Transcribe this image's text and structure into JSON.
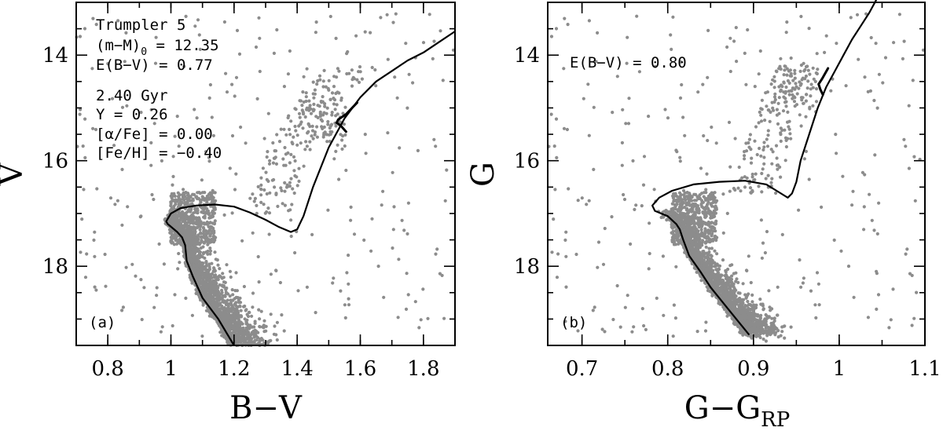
{
  "chart_data": [
    {
      "type": "scatter",
      "panel_label": "(a)",
      "xlabel": "B−V",
      "ylabel": "V",
      "xlim": [
        0.7,
        1.9
      ],
      "ylim": [
        19.5,
        13.0
      ],
      "y_inverted": true,
      "xticks": [
        "0.8",
        "1",
        "1.2",
        "1.4",
        "1.6",
        "1.8"
      ],
      "yticks": [
        "14",
        "16",
        "18"
      ],
      "xtick_values": [
        0.8,
        1.0,
        1.2,
        1.4,
        1.6,
        1.8
      ],
      "ytick_values": [
        14,
        16,
        18
      ],
      "annotations": [
        "Trumpler 5",
        "(m−M)",
        "0",
        " = 12.35",
        "E(B−V) = 0.77",
        "2.40 Gyr",
        "Y = 0.26",
        "[α/Fe] = 0.00",
        "[Fe/H] = −0.40"
      ],
      "star_color": "#8c8c8c",
      "isochrone": {
        "x": [
          1.2,
          1.15,
          1.1,
          1.07,
          1.05,
          1.045,
          1.035,
          1.02,
          0.99,
          0.985,
          1.0,
          1.03,
          1.08,
          1.14,
          1.2,
          1.25,
          1.3,
          1.34,
          1.38,
          1.4,
          1.42,
          1.45,
          1.5,
          1.55,
          1.6,
          1.65,
          1.7,
          1.75,
          1.8,
          1.85,
          1.9
        ],
        "y": [
          19.5,
          19.0,
          18.6,
          18.2,
          17.9,
          17.6,
          17.45,
          17.35,
          17.2,
          17.15,
          17.0,
          16.9,
          16.85,
          16.83,
          16.87,
          16.98,
          17.12,
          17.25,
          17.35,
          17.3,
          17.05,
          16.5,
          15.75,
          15.2,
          14.8,
          14.5,
          14.3,
          14.1,
          13.95,
          13.75,
          13.55
        ]
      },
      "red_clump_track": {
        "x": [
          1.59,
          1.555,
          1.53,
          1.525,
          1.54,
          1.555
        ],
        "y": [
          14.9,
          15.12,
          15.22,
          15.28,
          15.35,
          15.45
        ]
      }
    },
    {
      "type": "scatter",
      "panel_label": "(b)",
      "xlabel": "G−G",
      "xlabel_sub": "RP",
      "ylabel": "G",
      "xlim": [
        0.66,
        1.1
      ],
      "ylim": [
        19.5,
        13.0
      ],
      "y_inverted": true,
      "xticks": [
        "0.7",
        "0.8",
        "0.9",
        "1",
        "1.1"
      ],
      "yticks": [
        "14",
        "16",
        "18"
      ],
      "xtick_values": [
        0.7,
        0.8,
        0.9,
        1.0,
        1.1
      ],
      "ytick_values": [
        14,
        16,
        18
      ],
      "annotations": [
        "E(B−V) = 0.80"
      ],
      "star_color": "#8c8c8c",
      "isochrone": {
        "x": [
          0.895,
          0.88,
          0.865,
          0.85,
          0.838,
          0.825,
          0.818,
          0.814,
          0.81,
          0.8,
          0.785,
          0.782,
          0.79,
          0.805,
          0.83,
          0.86,
          0.89,
          0.915,
          0.93,
          0.94,
          0.945,
          0.95,
          0.955,
          0.965,
          0.975,
          0.985,
          0.995,
          1.005,
          1.015,
          1.025,
          1.035,
          1.045
        ],
        "y": [
          19.3,
          19.0,
          18.7,
          18.4,
          18.1,
          17.8,
          17.5,
          17.3,
          17.2,
          17.05,
          16.95,
          16.85,
          16.7,
          16.57,
          16.45,
          16.4,
          16.38,
          16.45,
          16.6,
          16.7,
          16.62,
          16.4,
          16.0,
          15.5,
          15.0,
          14.6,
          14.3,
          14.0,
          13.7,
          13.45,
          13.2,
          12.9
        ]
      },
      "red_clump_track": {
        "x": [
          0.987,
          0.98,
          0.976,
          0.978,
          0.981
        ],
        "y": [
          14.25,
          14.45,
          14.55,
          14.65,
          14.75
        ]
      }
    }
  ]
}
